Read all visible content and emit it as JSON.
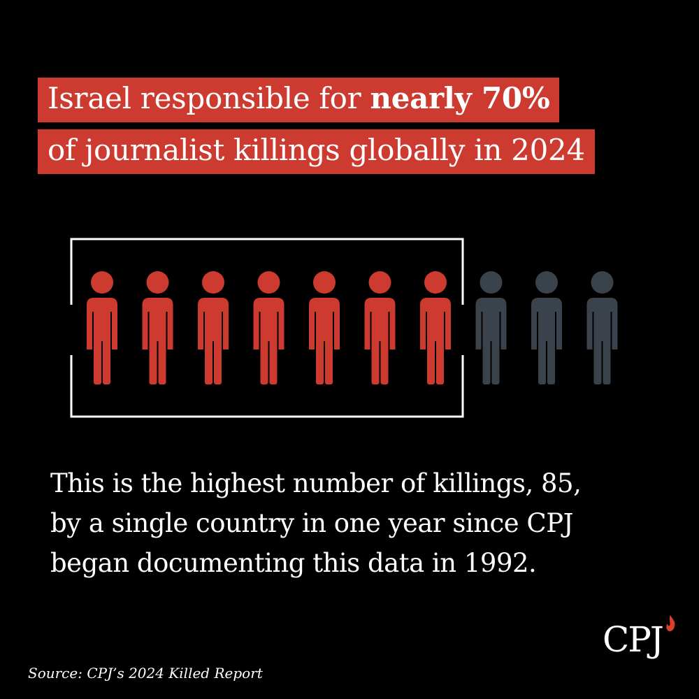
{
  "headline": {
    "line1_regular": "Israel responsible for ",
    "line1_bold": "nearly 70%",
    "line2": "of journalist killings globally in 2024"
  },
  "pictogram": {
    "total": 10,
    "highlighted": 7,
    "highlight_color": "#cc3a30",
    "other_color": "#3a424b",
    "frame_color": "#ffffff",
    "icon": "person-icon"
  },
  "body": {
    "line1": "This is the highest number of killings, 85,",
    "line2": "by a single country in one year since CPJ",
    "line3": "began documenting this data in 1992."
  },
  "source": "Source: CPJ’s 2024 Killed Report",
  "logo": {
    "text": "CPJ",
    "icon": "flame-icon",
    "flame_color": "#d8402e"
  },
  "colors": {
    "background": "#000000",
    "accent": "#cc3a30",
    "text": "#ffffff"
  }
}
